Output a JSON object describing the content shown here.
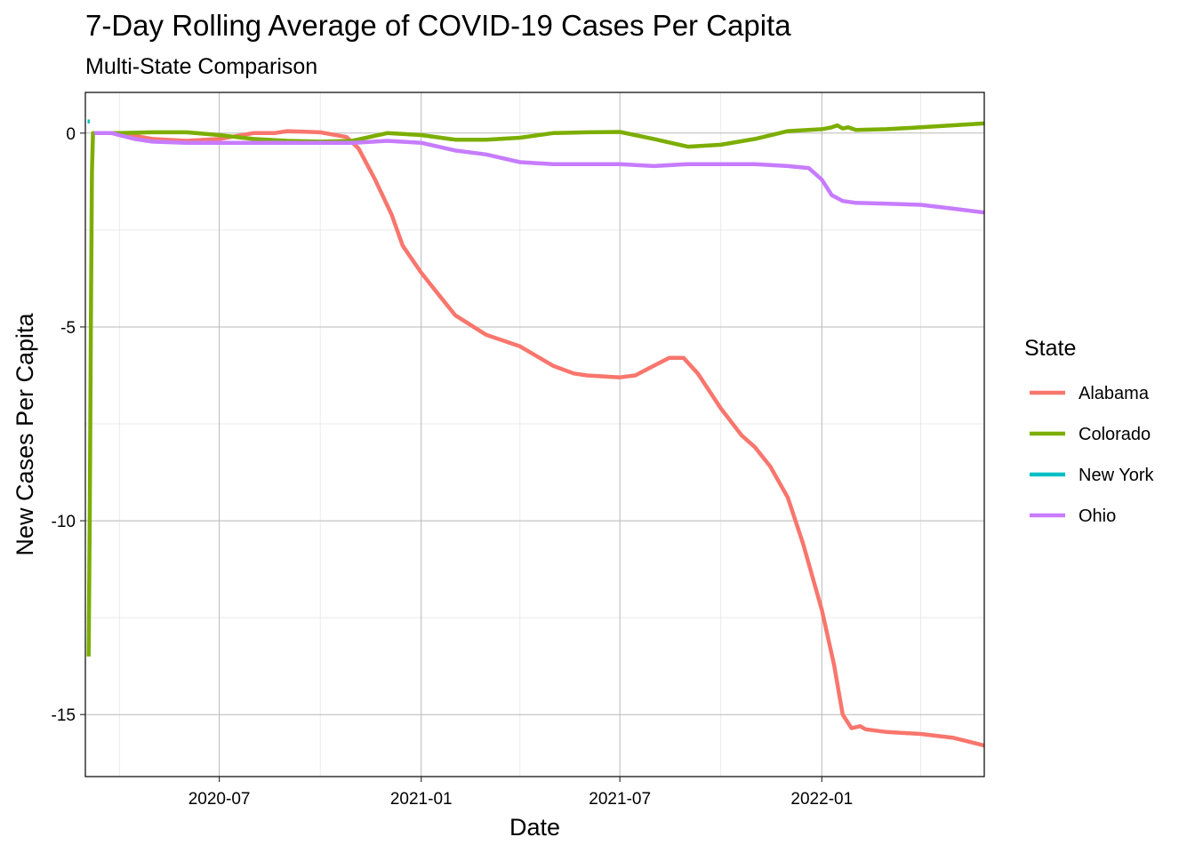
{
  "chart_data": {
    "type": "line",
    "title": "7-Day Rolling Average of COVID-19 Cases Per Capita",
    "subtitle": "Multi-State Comparison",
    "xlabel": "Date",
    "ylabel": "New Cases Per Capita",
    "x_ticks": [
      "2020-07",
      "2021-01",
      "2021-07",
      "2022-01"
    ],
    "y_ticks": [
      0,
      -5,
      -10,
      -15
    ],
    "y_tick_labels": [
      "0",
      "-5",
      "-10",
      "-15"
    ],
    "xlim": [
      "2020-03-01",
      "2022-05-29"
    ],
    "ylim": [
      -16.6,
      1.05
    ],
    "grid": true,
    "legend": {
      "title": "State",
      "position": "right"
    },
    "series": [
      {
        "name": "Alabama",
        "color": "#F8766D",
        "points": [
          [
            "2020-03-13",
            0
          ],
          [
            "2020-04-01",
            0
          ],
          [
            "2020-05-01",
            -0.15
          ],
          [
            "2020-06-01",
            -0.2
          ],
          [
            "2020-07-01",
            -0.15
          ],
          [
            "2020-08-01",
            0
          ],
          [
            "2020-08-20",
            0
          ],
          [
            "2020-09-01",
            0.05
          ],
          [
            "2020-10-01",
            0.02
          ],
          [
            "2020-10-25",
            -0.1
          ],
          [
            "2020-11-05",
            -0.4
          ],
          [
            "2020-11-20",
            -1.2
          ],
          [
            "2020-12-05",
            -2.1
          ],
          [
            "2020-12-15",
            -2.9
          ],
          [
            "2021-01-01",
            -3.6
          ],
          [
            "2021-01-15",
            -4.1
          ],
          [
            "2021-02-01",
            -4.7
          ],
          [
            "2021-03-01",
            -5.2
          ],
          [
            "2021-04-01",
            -5.5
          ],
          [
            "2021-05-01",
            -6.0
          ],
          [
            "2021-05-20",
            -6.2
          ],
          [
            "2021-06-01",
            -6.25
          ],
          [
            "2021-07-01",
            -6.3
          ],
          [
            "2021-07-15",
            -6.25
          ],
          [
            "2021-08-01",
            -6.0
          ],
          [
            "2021-08-15",
            -5.8
          ],
          [
            "2021-08-28",
            -5.8
          ],
          [
            "2021-09-10",
            -6.2
          ],
          [
            "2021-10-01",
            -7.1
          ],
          [
            "2021-10-20",
            -7.8
          ],
          [
            "2021-11-01",
            -8.1
          ],
          [
            "2021-11-15",
            -8.6
          ],
          [
            "2021-12-01",
            -9.4
          ],
          [
            "2021-12-15",
            -10.6
          ],
          [
            "2022-01-01",
            -12.3
          ],
          [
            "2022-01-12",
            -13.7
          ],
          [
            "2022-01-20",
            -15.0
          ],
          [
            "2022-01-28",
            -15.35
          ],
          [
            "2022-02-05",
            -15.3
          ],
          [
            "2022-02-10",
            -15.38
          ],
          [
            "2022-03-01",
            -15.45
          ],
          [
            "2022-04-01",
            -15.5
          ],
          [
            "2022-05-01",
            -15.6
          ],
          [
            "2022-05-15",
            -15.7
          ],
          [
            "2022-05-29",
            -15.8
          ]
        ]
      },
      {
        "name": "Colorado",
        "color": "#7CAE00",
        "points": [
          [
            "2020-03-04",
            -13.5
          ],
          [
            "2020-03-05",
            -10.0
          ],
          [
            "2020-03-06",
            -5.0
          ],
          [
            "2020-03-07",
            -1.0
          ],
          [
            "2020-03-08",
            0
          ],
          [
            "2020-04-01",
            0
          ],
          [
            "2020-05-01",
            0.02
          ],
          [
            "2020-06-01",
            0.02
          ],
          [
            "2020-07-01",
            -0.05
          ],
          [
            "2020-08-01",
            -0.15
          ],
          [
            "2020-09-01",
            -0.2
          ],
          [
            "2020-10-01",
            -0.22
          ],
          [
            "2020-10-30",
            -0.2
          ],
          [
            "2020-12-01",
            0
          ],
          [
            "2021-01-01",
            -0.05
          ],
          [
            "2021-02-01",
            -0.17
          ],
          [
            "2021-03-01",
            -0.17
          ],
          [
            "2021-04-01",
            -0.12
          ],
          [
            "2021-05-01",
            0
          ],
          [
            "2021-06-01",
            0.02
          ],
          [
            "2021-07-01",
            0.03
          ],
          [
            "2021-08-01",
            -0.15
          ],
          [
            "2021-09-01",
            -0.35
          ],
          [
            "2021-10-01",
            -0.3
          ],
          [
            "2021-11-01",
            -0.15
          ],
          [
            "2021-12-01",
            0.05
          ],
          [
            "2022-01-01",
            0.1
          ],
          [
            "2022-01-10",
            0.15
          ],
          [
            "2022-01-15",
            0.2
          ],
          [
            "2022-01-20",
            0.12
          ],
          [
            "2022-01-25",
            0.15
          ],
          [
            "2022-02-01",
            0.08
          ],
          [
            "2022-03-01",
            0.1
          ],
          [
            "2022-04-01",
            0.15
          ],
          [
            "2022-05-29",
            0.25
          ]
        ]
      },
      {
        "name": "New York",
        "color": "#00BFC4",
        "points": [
          [
            "2020-03-03",
            0.3
          ],
          [
            "2020-03-05",
            0.3
          ]
        ]
      },
      {
        "name": "Ohio",
        "color": "#C77CFF",
        "points": [
          [
            "2020-03-09",
            0
          ],
          [
            "2020-03-25",
            0
          ],
          [
            "2020-04-15",
            -0.15
          ],
          [
            "2020-05-01",
            -0.22
          ],
          [
            "2020-06-01",
            -0.25
          ],
          [
            "2020-08-01",
            -0.25
          ],
          [
            "2020-10-01",
            -0.25
          ],
          [
            "2020-11-01",
            -0.25
          ],
          [
            "2020-12-01",
            -0.2
          ],
          [
            "2021-01-01",
            -0.25
          ],
          [
            "2021-02-01",
            -0.45
          ],
          [
            "2021-03-01",
            -0.55
          ],
          [
            "2021-04-01",
            -0.75
          ],
          [
            "2021-05-01",
            -0.8
          ],
          [
            "2021-06-01",
            -0.8
          ],
          [
            "2021-07-01",
            -0.8
          ],
          [
            "2021-08-01",
            -0.85
          ],
          [
            "2021-09-01",
            -0.8
          ],
          [
            "2021-10-01",
            -0.8
          ],
          [
            "2021-11-01",
            -0.8
          ],
          [
            "2021-12-01",
            -0.85
          ],
          [
            "2021-12-20",
            -0.9
          ],
          [
            "2022-01-01",
            -1.2
          ],
          [
            "2022-01-10",
            -1.6
          ],
          [
            "2022-01-20",
            -1.75
          ],
          [
            "2022-02-01",
            -1.8
          ],
          [
            "2022-03-01",
            -1.82
          ],
          [
            "2022-04-01",
            -1.85
          ],
          [
            "2022-05-01",
            -1.95
          ],
          [
            "2022-05-29",
            -2.05
          ]
        ]
      }
    ]
  }
}
